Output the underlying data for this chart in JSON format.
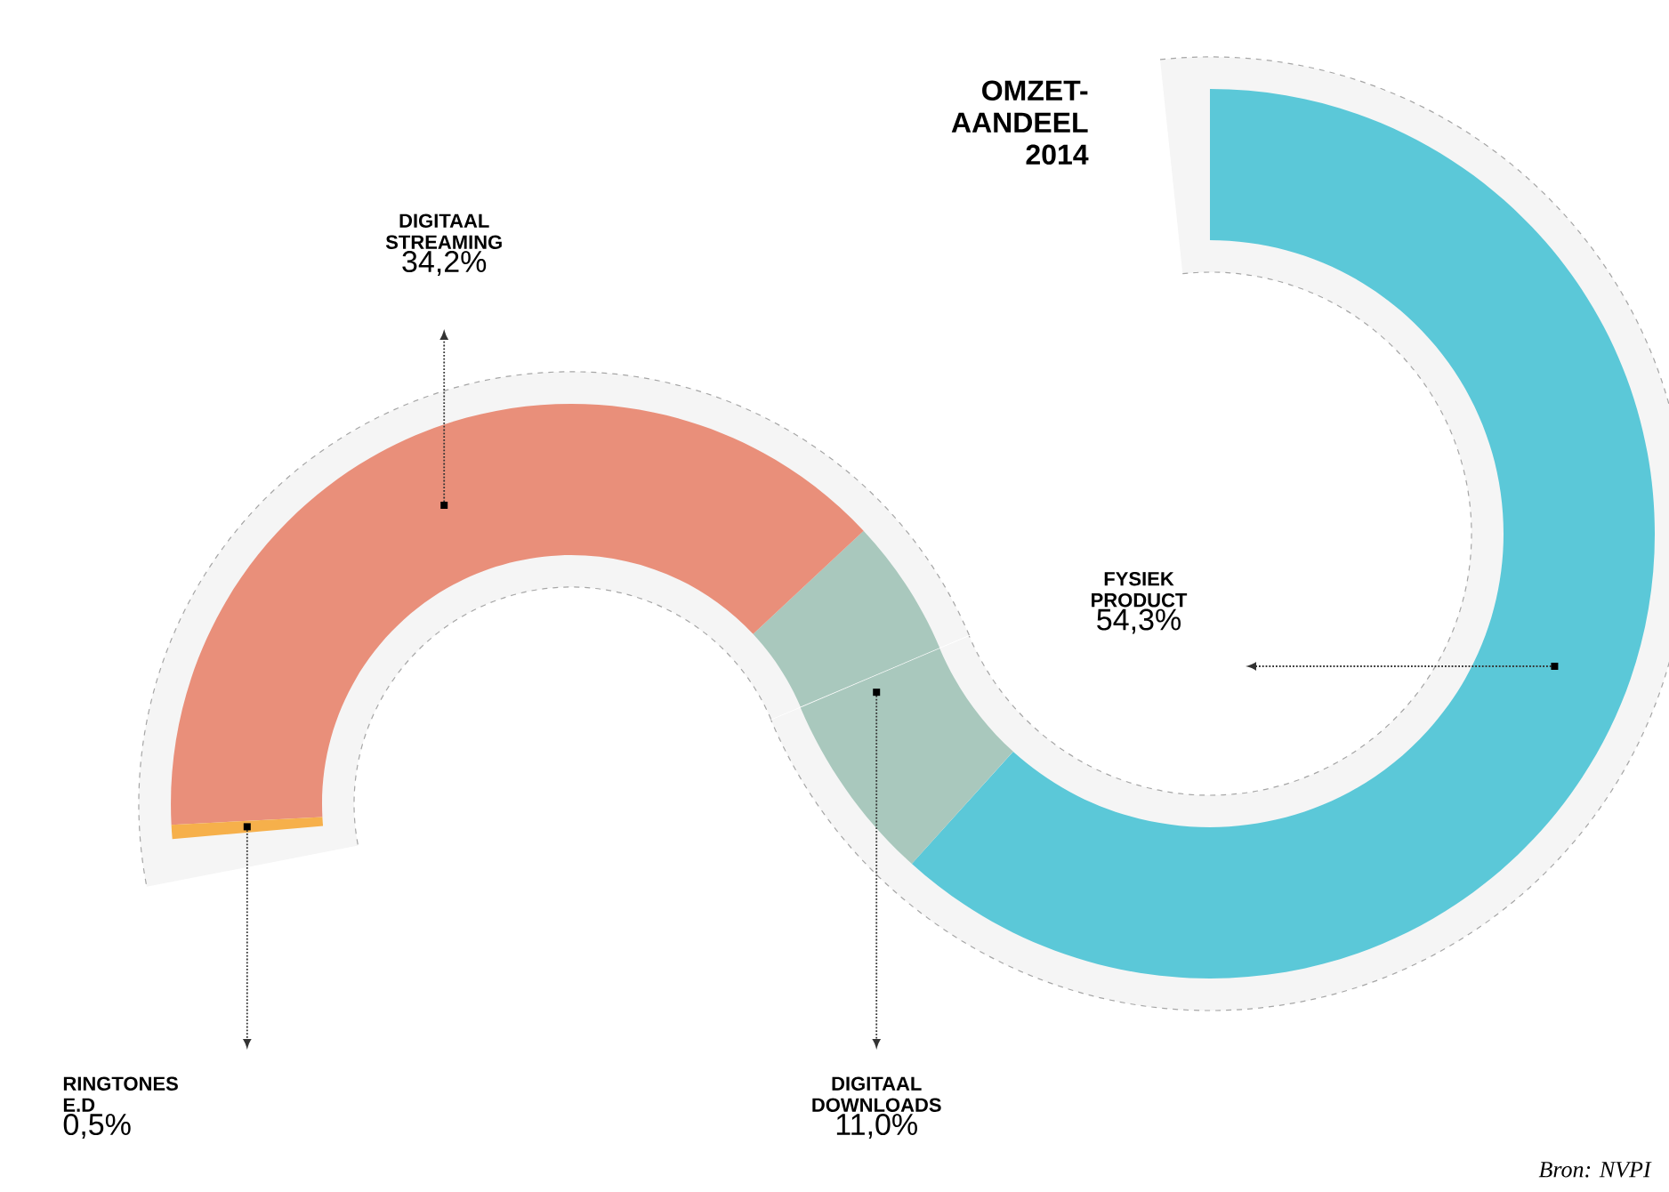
{
  "chart_data": {
    "type": "other",
    "title": "OMZET-AANDEEL 2014",
    "categories": [
      "FYSIEK PRODUCT",
      "DIGITAAL DOWNLOADS",
      "DIGITAAL STREAMING",
      "RINGTONES E.D"
    ],
    "values": [
      54.3,
      11.0,
      34.2,
      0.5
    ],
    "value_labels": [
      "54,3%",
      "11,0%",
      "34,2%",
      "0,5%"
    ],
    "colors": [
      "#5bc8d8",
      "#a9c8bd",
      "#e98f7a",
      "#f6b04b"
    ],
    "annotations": [
      "Bron: NVPI"
    ]
  }
}
